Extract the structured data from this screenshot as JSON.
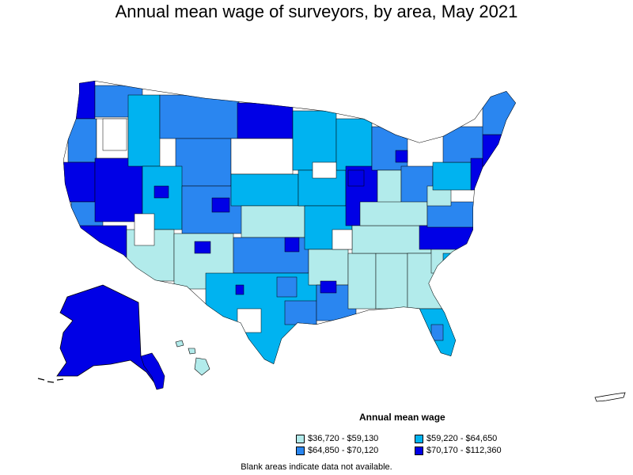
{
  "title": "Annual mean wage of surveyors, by area, May 2021",
  "legend": {
    "title": "Annual mean wage",
    "items": [
      {
        "label": "$36,720 - $59,130",
        "color": "#b2ebeb"
      },
      {
        "label": "$59,220 - $64,650",
        "color": "#00b3f0"
      },
      {
        "label": "$64,850 - $70,120",
        "color": "#2a86f0"
      },
      {
        "label": "$70,170 - $112,360",
        "color": "#0000e6"
      }
    ]
  },
  "note": "Blank areas indicate data not available.",
  "colors": {
    "no_data": "#ffffff",
    "outline": "#000000"
  }
}
